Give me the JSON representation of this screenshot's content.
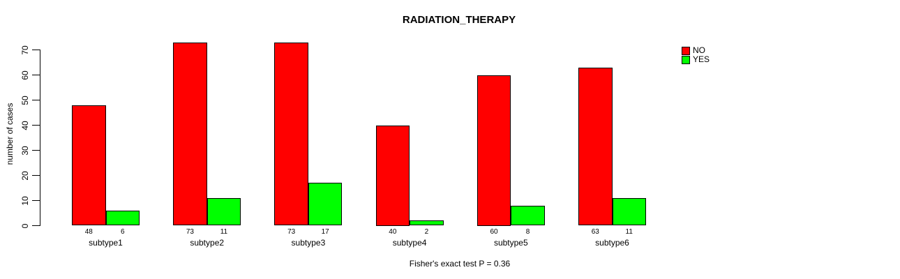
{
  "chart_data": {
    "type": "bar",
    "title": "RADIATION_THERAPY",
    "ylabel": "number of cases",
    "xlabel": "",
    "categories": [
      "subtype1",
      "subtype2",
      "subtype3",
      "subtype4",
      "subtype5",
      "subtype6"
    ],
    "series": [
      {
        "name": "NO",
        "color": "#FF0000",
        "values": [
          48,
          73,
          73,
          40,
          60,
          63
        ]
      },
      {
        "name": "YES",
        "color": "#00FF00",
        "values": [
          6,
          11,
          17,
          2,
          8,
          11
        ]
      }
    ],
    "ylim": [
      0,
      70
    ],
    "yticks": [
      0,
      10,
      20,
      30,
      40,
      50,
      60,
      70
    ],
    "grid": false,
    "bar_value_labels": true,
    "legend": {
      "position": "top-right",
      "entries": [
        "NO",
        "YES"
      ]
    },
    "annotation": "Fisher's exact test P = 0.36",
    "colors": {
      "background": "#FFFFFF",
      "axis": "#000000",
      "text": "#000000"
    }
  }
}
